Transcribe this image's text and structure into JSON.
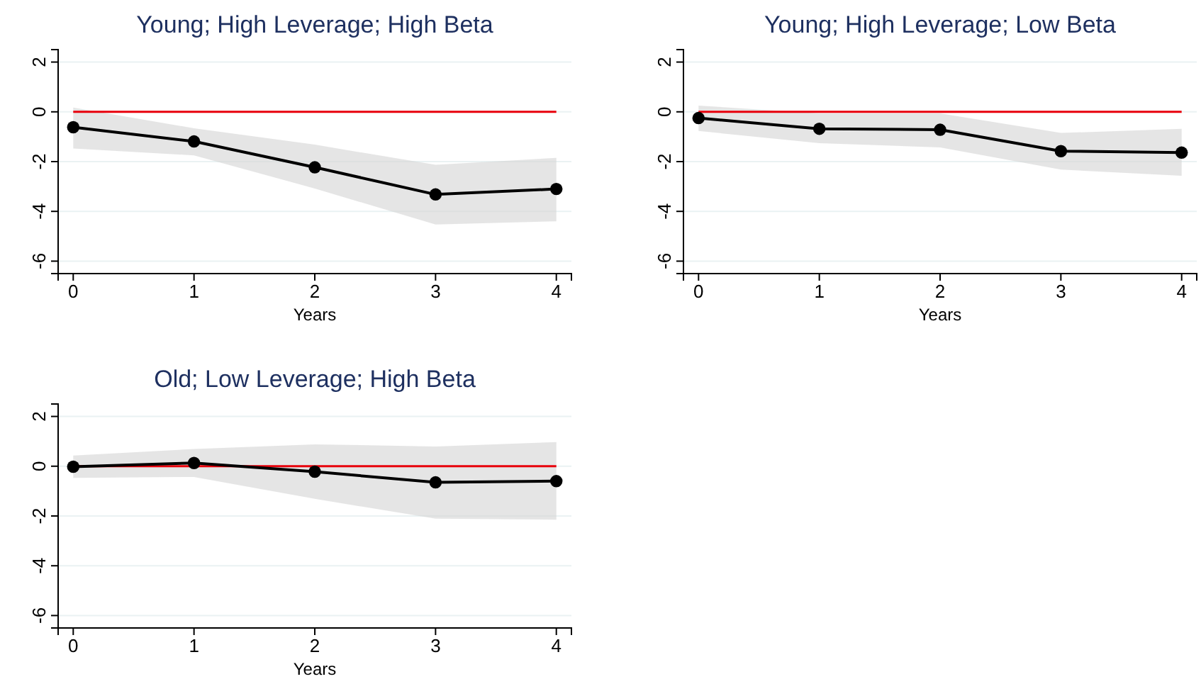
{
  "chart_data": [
    {
      "type": "line",
      "title": "Young; High Leverage; High Beta",
      "xlabel": "Years",
      "x": [
        0,
        1,
        2,
        3,
        4
      ],
      "xlim": [
        -0.125,
        4.125
      ],
      "xticks": [
        0,
        1,
        2,
        3,
        4
      ],
      "ylim": [
        -6.5,
        2.5
      ],
      "yticks": [
        -6,
        -4,
        -2,
        0,
        2
      ],
      "grid": "y",
      "marker": "circle",
      "series": [
        {
          "color": "#000000",
          "values": [
            -0.62,
            -1.19,
            -2.23,
            -3.32,
            -3.1
          ],
          "lower": [
            -1.47,
            -1.75,
            -3.08,
            -4.53,
            -4.4
          ],
          "upper": [
            0.17,
            -0.66,
            -1.32,
            -2.13,
            -1.85
          ]
        }
      ],
      "ref_lines": [
        {
          "axis": "y",
          "value": 0,
          "color": "#e8000b"
        }
      ]
    },
    {
      "type": "line",
      "title": "Young; High Leverage; Low Beta",
      "xlabel": "Years",
      "x": [
        0,
        1,
        2,
        3,
        4
      ],
      "xlim": [
        -0.125,
        4.125
      ],
      "xticks": [
        0,
        1,
        2,
        3,
        4
      ],
      "ylim": [
        -6.5,
        2.5
      ],
      "yticks": [
        -6,
        -4,
        -2,
        0,
        2
      ],
      "grid": "y",
      "marker": "circle",
      "series": [
        {
          "color": "#000000",
          "values": [
            -0.25,
            -0.68,
            -0.72,
            -1.58,
            -1.64
          ],
          "lower": [
            -0.77,
            -1.26,
            -1.43,
            -2.32,
            -2.57
          ],
          "upper": [
            0.25,
            -0.06,
            -0.06,
            -0.85,
            -0.68
          ]
        }
      ],
      "ref_lines": [
        {
          "axis": "y",
          "value": 0,
          "color": "#e8000b"
        }
      ]
    },
    {
      "type": "line",
      "title": "Old; Low Leverage; High Beta",
      "xlabel": "Years",
      "x": [
        0,
        1,
        2,
        3,
        4
      ],
      "xlim": [
        -0.125,
        4.125
      ],
      "xticks": [
        0,
        1,
        2,
        3,
        4
      ],
      "ylim": [
        -6.5,
        2.5
      ],
      "yticks": [
        -6,
        -4,
        -2,
        0,
        2
      ],
      "grid": "y",
      "marker": "circle",
      "series": [
        {
          "color": "#000000",
          "values": [
            -0.02,
            0.13,
            -0.22,
            -0.65,
            -0.6
          ],
          "lower": [
            -0.47,
            -0.43,
            -1.31,
            -2.11,
            -2.15
          ],
          "upper": [
            0.43,
            0.69,
            0.88,
            0.79,
            0.97
          ]
        }
      ],
      "ref_lines": [
        {
          "axis": "y",
          "value": 0,
          "color": "#e8000b"
        }
      ]
    }
  ]
}
